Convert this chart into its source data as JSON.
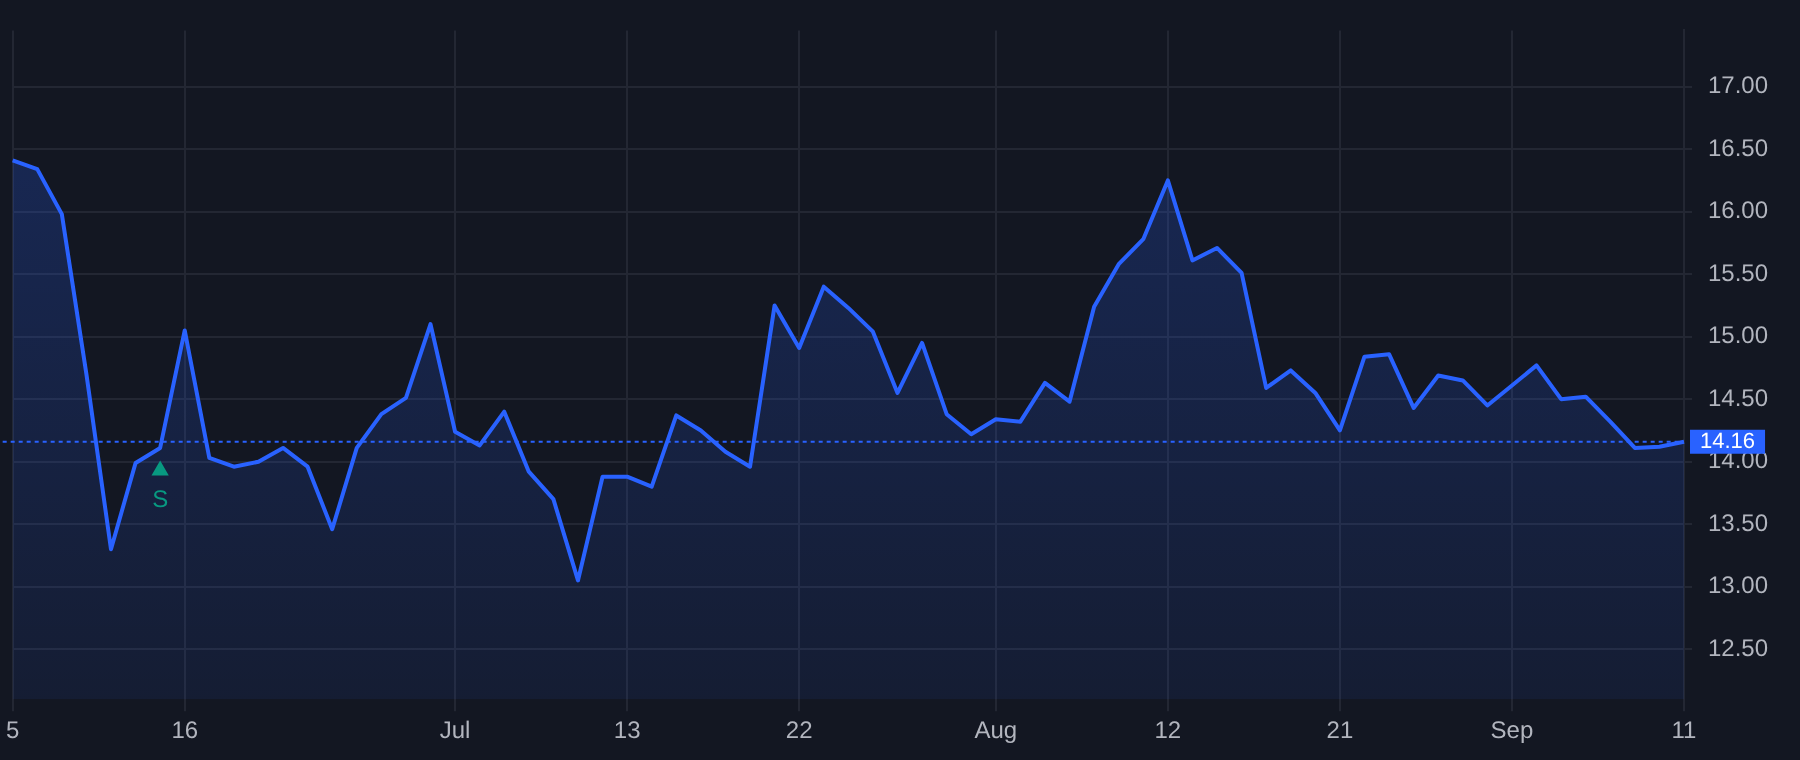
{
  "chart_data": {
    "type": "area",
    "categories": [
      "5",
      null,
      null,
      null,
      null,
      null,
      null,
      "16",
      null,
      null,
      null,
      null,
      null,
      null,
      null,
      null,
      null,
      null,
      "Jul",
      null,
      null,
      null,
      null,
      null,
      null,
      "13",
      null,
      null,
      null,
      null,
      null,
      null,
      "22",
      null,
      null,
      null,
      null,
      null,
      null,
      null,
      "Aug",
      null,
      null,
      null,
      null,
      null,
      null,
      "12",
      null,
      null,
      null,
      null,
      null,
      null,
      "21",
      null,
      null,
      null,
      null,
      null,
      null,
      "Sep",
      null,
      null,
      null,
      null,
      null,
      null,
      "11"
    ],
    "series": [
      {
        "color": "#2962ff",
        "values": [
          16.41,
          16.34,
          15.98,
          14.7,
          13.3,
          13.99,
          14.11,
          15.05,
          14.03,
          13.96,
          14.0,
          14.11,
          13.96,
          13.46,
          14.11,
          14.38,
          14.51,
          15.1,
          14.24,
          14.13,
          14.4,
          13.92,
          13.7,
          13.05,
          13.88,
          13.88,
          13.8,
          14.37,
          14.25,
          14.08,
          13.96,
          15.25,
          14.91,
          15.4,
          15.23,
          15.04,
          14.55,
          14.95,
          14.38,
          14.22,
          14.34,
          14.32,
          14.63,
          14.48,
          15.24,
          15.58,
          15.78,
          16.25,
          15.61,
          15.71,
          15.51,
          14.59,
          14.73,
          14.55,
          14.25,
          14.84,
          14.86,
          14.43,
          14.69,
          14.65,
          14.45,
          14.61,
          14.77,
          14.5,
          14.52,
          14.32,
          14.11,
          14.12,
          14.16
        ]
      },
      {
        "name": "S",
        "type": "scatter",
        "color": "#089981",
        "marker": "triangle",
        "values": [
          null,
          null,
          null,
          null,
          null,
          null,
          13.93,
          null,
          null,
          null,
          null,
          null,
          null,
          null,
          null,
          null,
          null,
          null,
          null,
          null,
          null,
          null,
          null,
          null,
          null,
          null,
          null,
          null,
          null,
          null,
          null,
          null,
          null,
          null,
          null,
          null,
          null,
          null,
          null,
          null,
          null,
          null,
          null,
          null,
          null,
          null,
          null,
          null,
          null,
          null,
          null,
          null,
          null,
          null,
          null,
          null,
          null,
          null,
          null,
          null,
          null,
          null,
          null,
          null,
          null,
          null,
          null,
          null,
          null
        ]
      }
    ],
    "ylim": [
      12.1,
      17.45
    ],
    "yticks": [
      {
        "value": 12.5,
        "label": "12.50"
      },
      {
        "value": 13,
        "label": "13.00"
      },
      {
        "value": 13.5,
        "label": "13.50"
      },
      {
        "value": 14,
        "label": "14.00"
      },
      {
        "value": 14.5,
        "label": "14.50"
      },
      {
        "value": 15,
        "label": "15.00"
      },
      {
        "value": 15.5,
        "label": "15.50"
      },
      {
        "value": 16,
        "label": "16.00"
      },
      {
        "value": 16.5,
        "label": "16.50"
      },
      {
        "value": 17,
        "label": "17.00"
      }
    ],
    "ref_lines": [
      {
        "axis": "y",
        "value": 14.16,
        "label": "14.16",
        "color": "#2962ff",
        "line_style": "dotted"
      }
    ],
    "grid": true,
    "legend": false
  }
}
